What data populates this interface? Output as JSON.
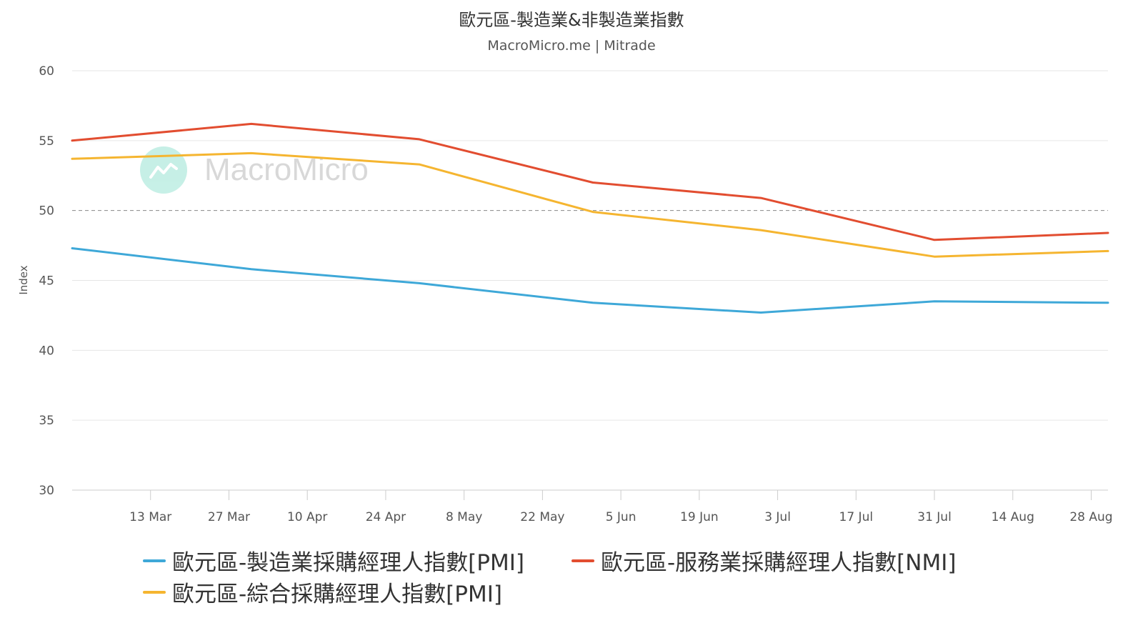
{
  "chart_data": {
    "type": "line",
    "title": "歐元區-製造業&非製造業指數",
    "subtitle": "MacroMicro.me | Mitrade",
    "watermark": "MacroMicro",
    "ylabel": "Index",
    "ylim": [
      30,
      60
    ],
    "yticks": [
      30,
      35,
      40,
      45,
      50,
      55,
      60
    ],
    "x_range": [
      "2020-02-28",
      "2020-08-31"
    ],
    "x_ticks": [
      {
        "date": "2020-03-13",
        "label": "13 Mar"
      },
      {
        "date": "2020-03-27",
        "label": "27 Mar"
      },
      {
        "date": "2020-04-10",
        "label": "10 Apr"
      },
      {
        "date": "2020-04-24",
        "label": "24 Apr"
      },
      {
        "date": "2020-05-08",
        "label": "8 May"
      },
      {
        "date": "2020-05-22",
        "label": "22 May"
      },
      {
        "date": "2020-06-05",
        "label": "5 Jun"
      },
      {
        "date": "2020-06-19",
        "label": "19 Jun"
      },
      {
        "date": "2020-07-03",
        "label": "3 Jul"
      },
      {
        "date": "2020-07-17",
        "label": "17 Jul"
      },
      {
        "date": "2020-07-31",
        "label": "31 Jul"
      },
      {
        "date": "2020-08-14",
        "label": "14 Aug"
      },
      {
        "date": "2020-08-28",
        "label": "28 Aug"
      }
    ],
    "reference_line": 50,
    "grid": true,
    "legend_position": "bottom",
    "series": [
      {
        "name": "歐元區-製造業採購經理人指數[PMI]",
        "color": "#3ea8d8",
        "points": [
          {
            "x": "2020-02-28",
            "y": 47.3
          },
          {
            "x": "2020-03-31",
            "y": 45.8
          },
          {
            "x": "2020-04-30",
            "y": 44.8
          },
          {
            "x": "2020-05-31",
            "y": 43.4
          },
          {
            "x": "2020-06-30",
            "y": 42.7
          },
          {
            "x": "2020-07-31",
            "y": 43.5
          },
          {
            "x": "2020-08-31",
            "y": 43.4
          }
        ]
      },
      {
        "name": "歐元區-服務業採購經理人指數[NMI]",
        "color": "#e24d30",
        "points": [
          {
            "x": "2020-02-28",
            "y": 55.0
          },
          {
            "x": "2020-03-31",
            "y": 56.2
          },
          {
            "x": "2020-04-30",
            "y": 55.1
          },
          {
            "x": "2020-05-31",
            "y": 52.0
          },
          {
            "x": "2020-06-30",
            "y": 50.9
          },
          {
            "x": "2020-07-31",
            "y": 47.9
          },
          {
            "x": "2020-08-31",
            "y": 48.4
          }
        ]
      },
      {
        "name": "歐元區-綜合採購經理人指數[PMI]",
        "color": "#f5b530",
        "points": [
          {
            "x": "2020-02-28",
            "y": 53.7
          },
          {
            "x": "2020-03-31",
            "y": 54.1
          },
          {
            "x": "2020-04-30",
            "y": 53.3
          },
          {
            "x": "2020-05-31",
            "y": 49.9
          },
          {
            "x": "2020-06-30",
            "y": 48.6
          },
          {
            "x": "2020-07-31",
            "y": 46.7
          },
          {
            "x": "2020-08-31",
            "y": 47.1
          }
        ]
      }
    ]
  }
}
